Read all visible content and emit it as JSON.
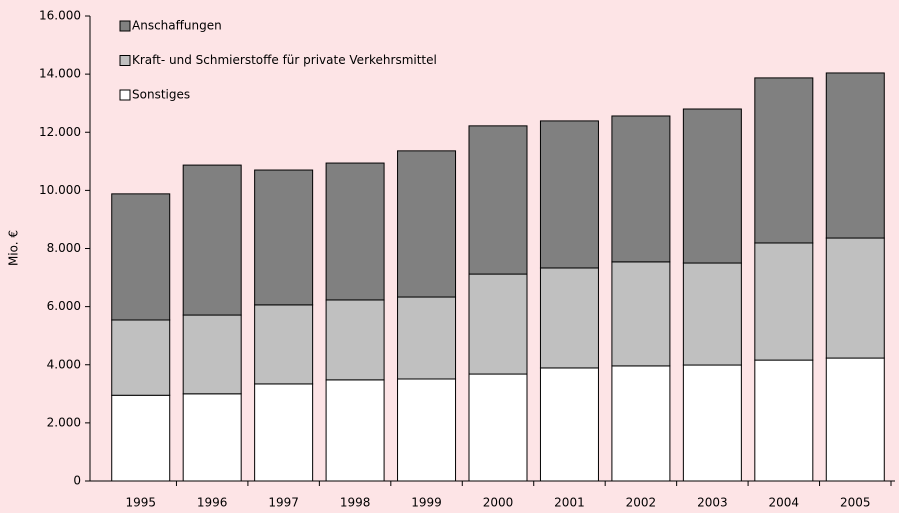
{
  "chart_data": {
    "type": "stacked_bar",
    "ylabel": "Mio. €",
    "categories": [
      "1995",
      "1996",
      "1997",
      "1998",
      "1999",
      "2000",
      "2001",
      "2002",
      "2003",
      "2004",
      "2005"
    ],
    "series": [
      {
        "name": "Sonstiges",
        "color": "#ffffff",
        "values": [
          2950,
          3000,
          3340,
          3480,
          3510,
          3680,
          3890,
          3960,
          3990,
          4160,
          4230
        ]
      },
      {
        "name": "Kraft- und Schmierstoffe für private Verkehrsmittel",
        "color": "#c0c0c0",
        "values": [
          2590,
          2710,
          2720,
          2750,
          2820,
          3440,
          3440,
          3580,
          3510,
          4030,
          4130
        ]
      },
      {
        "name": "Anschaffungen",
        "color": "#808080",
        "values": [
          4340,
          5160,
          4640,
          4710,
          5030,
          5100,
          5060,
          5020,
          5300,
          5680,
          5680
        ]
      }
    ],
    "ylim": [
      0,
      16000
    ],
    "yticks": [
      0,
      {
        "value": 2000,
        "label": "2.000"
      },
      {
        "value": 4000,
        "label": "4.000"
      },
      {
        "value": 6000,
        "label": "6.000"
      },
      {
        "value": 8000,
        "label": "8.000"
      },
      {
        "value": 10000,
        "label": "10.000"
      },
      {
        "value": 12000,
        "label": "12.000"
      },
      {
        "value": 14000,
        "label": "14.000"
      },
      {
        "value": 16000,
        "label": "16.000"
      }
    ],
    "legend": "top-left"
  }
}
